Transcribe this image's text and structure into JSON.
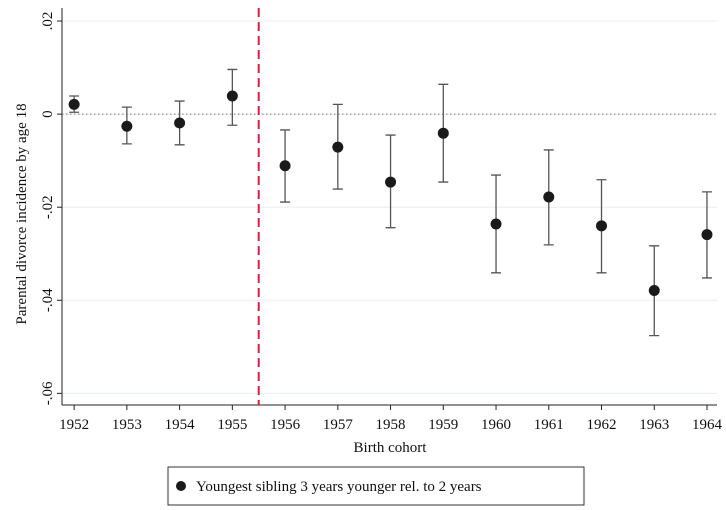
{
  "chart_data": {
    "type": "errorbar",
    "x_label": "Birth cohort",
    "y_label": "Parental divorce incidence by age 18",
    "x": [
      1952,
      1953,
      1954,
      1955,
      1956,
      1957,
      1958,
      1959,
      1960,
      1961,
      1962,
      1963,
      1964
    ],
    "series": [
      {
        "name": "Youngest sibling 3 years younger rel. to 2 years",
        "color": "#1a1a1a",
        "values": [
          0.0021,
          -0.0026,
          -0.0019,
          0.0039,
          -0.0111,
          -0.0071,
          -0.0146,
          -0.0041,
          -0.0236,
          -0.0178,
          -0.024,
          -0.0379,
          -0.0259
        ],
        "ci_low": [
          0.0004,
          -0.0064,
          -0.0066,
          -0.0024,
          -0.0189,
          -0.0161,
          -0.0244,
          -0.0146,
          -0.0341,
          -0.0281,
          -0.0341,
          -0.0476,
          -0.0352
        ],
        "ci_high": [
          0.0039,
          0.0015,
          0.0028,
          0.0096,
          -0.0034,
          0.0021,
          -0.0045,
          0.0064,
          -0.0131,
          -0.0077,
          -0.0141,
          -0.0283,
          -0.0167
        ]
      }
    ],
    "xlim": [
      1951.77,
      1964.19
    ],
    "xticks": [
      1952,
      1953,
      1954,
      1955,
      1956,
      1957,
      1958,
      1959,
      1960,
      1961,
      1962,
      1963,
      1964
    ],
    "ylim": [
      -0.0625,
      0.0228
    ],
    "yticks": [
      {
        "value": 0.02,
        "label": ".02"
      },
      0,
      {
        "value": -0.02,
        "label": "-.02"
      },
      {
        "value": -0.04,
        "label": "-.04"
      },
      {
        "value": -0.06,
        "label": "-.06"
      }
    ],
    "vline": 1955.5,
    "vline_color": "#d6204a",
    "hline": 0,
    "grid": true,
    "legend": "bottom"
  }
}
